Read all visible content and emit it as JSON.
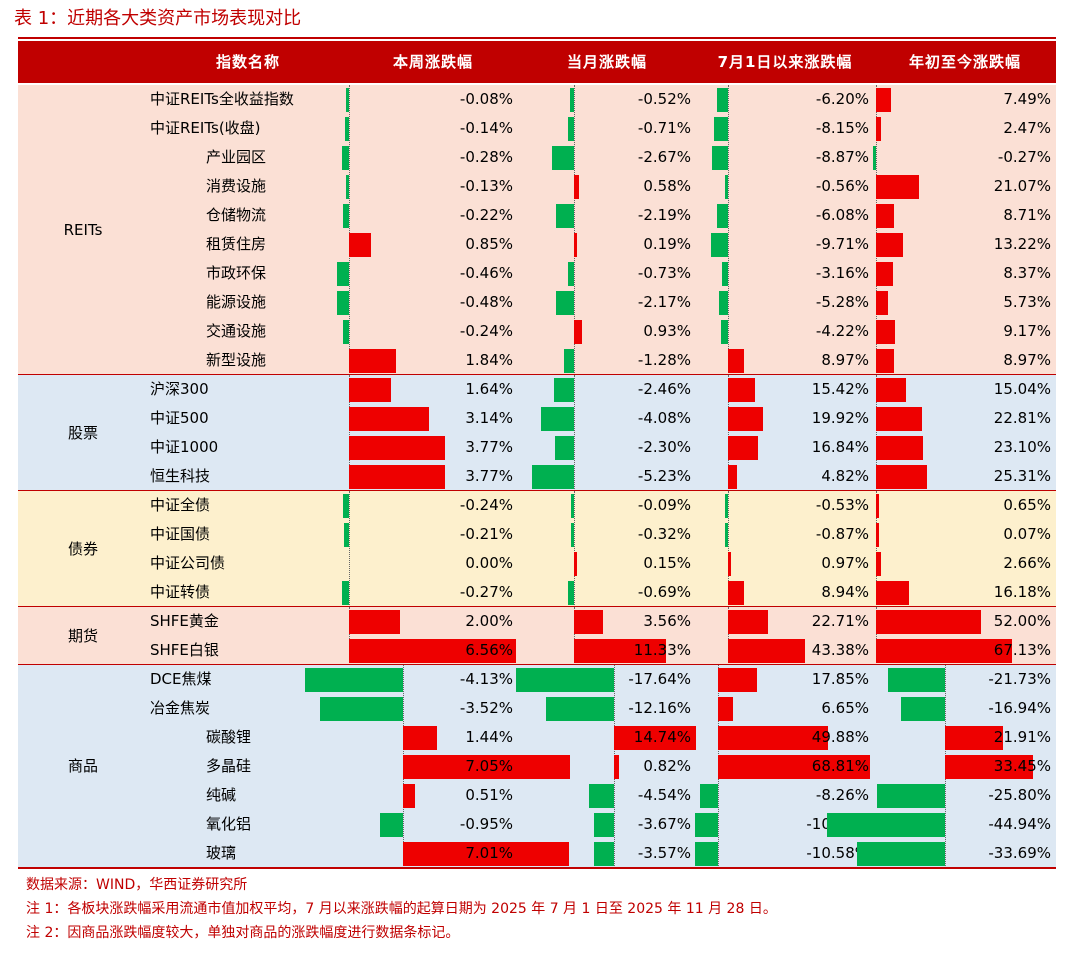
{
  "title": "表 1：近期各大类资产市场表现对比",
  "headers": [
    "指数名称",
    "本周涨跌幅",
    "当月涨跌幅",
    "7月1日以来涨跌幅",
    "年初至今涨跌幅"
  ],
  "colors": {
    "accent": "#c00000",
    "bar_pos": "#ee0000",
    "bar_neg": "#00b050",
    "reits_bg": "#fbe0d5",
    "stock_bg": "#dde8f3",
    "bond_bg": "#fdf0cd",
    "fut_bg": "#fbe0d5",
    "comm_bg": "#dde8f3"
  },
  "groups": [
    {
      "name": "REITs",
      "rows": [
        {
          "name": "中证REITs全收益指数",
          "indent": false,
          "values": [
            -0.08,
            -0.52,
            -6.2,
            7.49
          ],
          "labels": [
            "-0.08%",
            "-0.52%",
            "-6.20%",
            "7.49%"
          ]
        },
        {
          "name": "中证REITs(收盘)",
          "indent": false,
          "values": [
            -0.14,
            -0.71,
            -8.15,
            2.47
          ],
          "labels": [
            "-0.14%",
            "-0.71%",
            "-8.15%",
            "2.47%"
          ]
        },
        {
          "name": "产业园区",
          "indent": true,
          "values": [
            -0.28,
            -2.67,
            -8.87,
            -0.27
          ],
          "labels": [
            "-0.28%",
            "-2.67%",
            "-8.87%",
            "-0.27%"
          ]
        },
        {
          "name": "消费设施",
          "indent": true,
          "values": [
            -0.13,
            0.58,
            -0.56,
            21.07
          ],
          "labels": [
            "-0.13%",
            "0.58%",
            "-0.56%",
            "21.07%"
          ]
        },
        {
          "name": "仓储物流",
          "indent": true,
          "values": [
            -0.22,
            -2.19,
            -6.08,
            8.71
          ],
          "labels": [
            "-0.22%",
            "-2.19%",
            "-6.08%",
            "8.71%"
          ]
        },
        {
          "name": "租赁住房",
          "indent": true,
          "values": [
            0.85,
            0.19,
            -9.71,
            13.22
          ],
          "labels": [
            "0.85%",
            "0.19%",
            "-9.71%",
            "13.22%"
          ]
        },
        {
          "name": "市政环保",
          "indent": true,
          "values": [
            -0.46,
            -0.73,
            -3.16,
            8.37
          ],
          "labels": [
            "-0.46%",
            "-0.73%",
            "-3.16%",
            "8.37%"
          ]
        },
        {
          "name": "能源设施",
          "indent": true,
          "values": [
            -0.48,
            -2.17,
            -5.28,
            5.73
          ],
          "labels": [
            "-0.48%",
            "-2.17%",
            "-5.28%",
            "5.73%"
          ]
        },
        {
          "name": "交通设施",
          "indent": true,
          "values": [
            -0.24,
            0.93,
            -4.22,
            9.17
          ],
          "labels": [
            "-0.24%",
            "0.93%",
            "-4.22%",
            "9.17%"
          ]
        },
        {
          "name": "新型设施",
          "indent": true,
          "values": [
            1.84,
            -1.28,
            8.97,
            8.97
          ],
          "labels": [
            "1.84%",
            "-1.28%",
            "8.97%",
            "8.97%"
          ]
        }
      ]
    },
    {
      "name": "股票",
      "rows": [
        {
          "name": "沪深300",
          "indent": false,
          "values": [
            1.64,
            -2.46,
            15.42,
            15.04
          ],
          "labels": [
            "1.64%",
            "-2.46%",
            "15.42%",
            "15.04%"
          ]
        },
        {
          "name": "中证500",
          "indent": false,
          "values": [
            3.14,
            -4.08,
            19.92,
            22.81
          ],
          "labels": [
            "3.14%",
            "-4.08%",
            "19.92%",
            "22.81%"
          ]
        },
        {
          "name": "中证1000",
          "indent": false,
          "values": [
            3.77,
            -2.3,
            16.84,
            23.1
          ],
          "labels": [
            "3.77%",
            "-2.30%",
            "16.84%",
            "23.10%"
          ]
        },
        {
          "name": "恒生科技",
          "indent": false,
          "values": [
            3.77,
            -5.23,
            4.82,
            25.31
          ],
          "labels": [
            "3.77%",
            "-5.23%",
            "4.82%",
            "25.31%"
          ]
        }
      ]
    },
    {
      "name": "债券",
      "rows": [
        {
          "name": "中证全债",
          "indent": false,
          "values": [
            -0.24,
            -0.09,
            -0.53,
            0.65
          ],
          "labels": [
            "-0.24%",
            "-0.09%",
            "-0.53%",
            "0.65%"
          ]
        },
        {
          "name": "中证国债",
          "indent": false,
          "values": [
            -0.21,
            -0.32,
            -0.87,
            0.07
          ],
          "labels": [
            "-0.21%",
            "-0.32%",
            "-0.87%",
            "0.07%"
          ]
        },
        {
          "name": "中证公司债",
          "indent": false,
          "values": [
            0.0,
            0.15,
            0.97,
            2.66
          ],
          "labels": [
            "0.00%",
            "0.15%",
            "0.97%",
            "2.66%"
          ]
        },
        {
          "name": "中证转债",
          "indent": false,
          "values": [
            -0.27,
            -0.69,
            8.94,
            16.18
          ],
          "labels": [
            "-0.27%",
            "-0.69%",
            "8.94%",
            "16.18%"
          ]
        }
      ]
    },
    {
      "name": "期货",
      "rows": [
        {
          "name": "SHFE黄金",
          "indent": false,
          "values": [
            2.0,
            3.56,
            22.71,
            52.0
          ],
          "labels": [
            "2.00%",
            "3.56%",
            "22.71%",
            "52.00%"
          ]
        },
        {
          "name": "SHFE白银",
          "indent": false,
          "values": [
            6.56,
            11.33,
            43.38,
            67.13
          ],
          "labels": [
            "6.56%",
            "11.33%",
            "43.38%",
            "67.13%"
          ]
        }
      ]
    },
    {
      "name": "商品",
      "rows": [
        {
          "name": "DCE焦煤",
          "indent": false,
          "values": [
            -4.13,
            -17.64,
            17.85,
            -21.73
          ],
          "labels": [
            "-4.13%",
            "-17.64%",
            "17.85%",
            "-21.73%"
          ]
        },
        {
          "name": "冶金焦炭",
          "indent": false,
          "values": [
            -3.52,
            -12.16,
            6.65,
            -16.94
          ],
          "labels": [
            "-3.52%",
            "-12.16%",
            "6.65%",
            "-16.94%"
          ]
        },
        {
          "name": "碳酸锂",
          "indent": true,
          "values": [
            1.44,
            14.74,
            49.88,
            21.91
          ],
          "labels": [
            "1.44%",
            "14.74%",
            "49.88%",
            "21.91%"
          ]
        },
        {
          "name": "多晶硅",
          "indent": true,
          "values": [
            7.05,
            0.82,
            68.81,
            33.45
          ],
          "labels": [
            "7.05%",
            "0.82%",
            "68.81%",
            "33.45%"
          ]
        },
        {
          "name": "纯碱",
          "indent": true,
          "values": [
            0.51,
            -4.54,
            -8.26,
            -25.8
          ],
          "labels": [
            "0.51%",
            "-4.54%",
            "-8.26%",
            "-25.80%"
          ]
        },
        {
          "name": "氧化铝",
          "indent": true,
          "values": [
            -0.95,
            -3.67,
            -10.38,
            -44.94
          ],
          "labels": [
            "-0.95%",
            "-3.67%",
            "-10.38%",
            "-44.94%"
          ]
        },
        {
          "name": "玻璃",
          "indent": true,
          "values": [
            7.01,
            -3.57,
            -10.58,
            -33.69
          ],
          "labels": [
            "7.01%",
            "-3.57%",
            "-10.58%",
            "-33.69%"
          ]
        }
      ]
    }
  ],
  "footnotes": [
    "数据来源：WIND，华西证券研究所",
    "注 1：各板块涨跌幅采用流通市值加权平均，7 月以来涨跌幅的起算日期为 2025 年 7 月 1 日至 2025 年 11 月 28 日。",
    "注 2：因商品涨跌幅度较大，单独对商品的涨跌幅度进行数据条标记。"
  ]
}
